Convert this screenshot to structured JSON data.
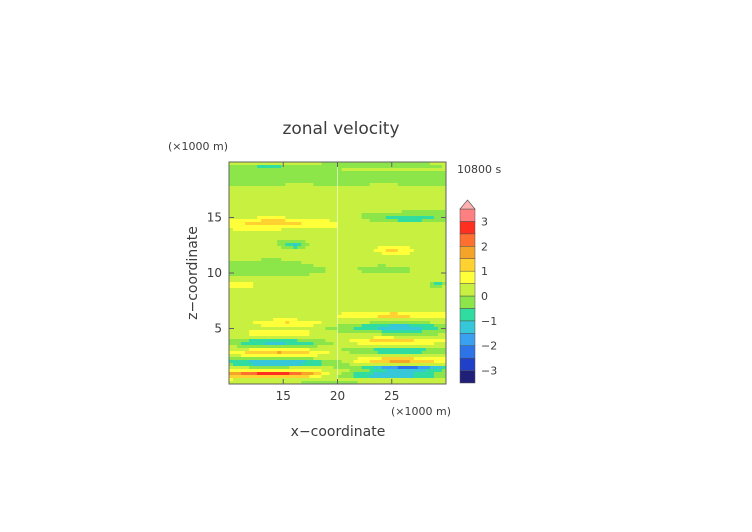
{
  "chart_data": {
    "type": "heatmap",
    "title": "zonal velocity",
    "time_label": "10800 s",
    "xlabel": "x−coordinate",
    "ylabel": "z−coordinate",
    "x_unit": "(×1000 m)",
    "z_unit": "(×1000 m)",
    "xlim": [
      10,
      30
    ],
    "zlim": [
      0,
      20
    ],
    "x_ticks": [
      15,
      20,
      25
    ],
    "z_ticks": [
      5,
      10,
      15
    ],
    "colorbar": {
      "levels": [
        -3.5,
        -3,
        -2.5,
        -2,
        -1.5,
        -1,
        -0.5,
        0,
        0.5,
        1,
        1.5,
        2,
        2.5,
        3,
        3.5
      ],
      "colors": [
        "#202078",
        "#2040c8",
        "#2c74e8",
        "#3aa0f0",
        "#36c8d8",
        "#30dca0",
        "#8ce64a",
        "#c8f040",
        "#ffff3a",
        "#ffd232",
        "#f5a42a",
        "#ff7030",
        "#ff3020",
        "#ff8080",
        "#ffb0b0"
      ],
      "tick_labels": [
        "3",
        "2",
        "1",
        "0",
        "−1",
        "−2",
        "−3"
      ],
      "tick_values": [
        3,
        2,
        1,
        0,
        -1,
        -2,
        -3
      ],
      "extend": "max"
    },
    "blobs": [
      {
        "x": 14,
        "z": 0.9,
        "rx": 4.5,
        "rz": 0.25,
        "v": 2.4
      },
      {
        "x": 14.5,
        "z": 1.9,
        "rx": 4.5,
        "rz": 0.3,
        "v": -1.8
      },
      {
        "x": 14.5,
        "z": 2.8,
        "rx": 4.5,
        "rz": 0.3,
        "v": 1.3
      },
      {
        "x": 14.5,
        "z": 3.7,
        "rx": 4.5,
        "rz": 0.35,
        "v": -1.4
      },
      {
        "x": 14.5,
        "z": 4.6,
        "rx": 4.2,
        "rz": 0.35,
        "v": 0.9
      },
      {
        "x": 15.5,
        "z": 5.4,
        "rx": 3.2,
        "rz": 0.3,
        "v": 0.9
      },
      {
        "x": 14,
        "z": 14.5,
        "rx": 3.5,
        "rz": 0.45,
        "v": 0.9
      },
      {
        "x": 16,
        "z": 12.5,
        "rx": 0.9,
        "rz": 0.25,
        "v": -1.2
      },
      {
        "x": 13,
        "z": 11.0,
        "rx": 3.5,
        "rz": 1.2,
        "v": -0.3
      },
      {
        "x": 10.8,
        "z": 8.9,
        "rx": 1.0,
        "rz": 0.3,
        "v": 0.7
      },
      {
        "x": 25,
        "z": 0.8,
        "rx": 5,
        "rz": 0.25,
        "v": -2.2
      },
      {
        "x": 26.3,
        "z": 1.4,
        "rx": 3.8,
        "rz": 0.25,
        "v": -2.7
      },
      {
        "x": 26,
        "z": 2.1,
        "rx": 4.5,
        "rz": 0.3,
        "v": 1.6
      },
      {
        "x": 25.5,
        "z": 3.0,
        "rx": 4.5,
        "rz": 0.3,
        "v": -1.2
      },
      {
        "x": 25,
        "z": 3.9,
        "rx": 4.5,
        "rz": 0.3,
        "v": 1.0
      },
      {
        "x": 25.5,
        "z": 5.1,
        "rx": 4.2,
        "rz": 0.4,
        "v": -1.4
      },
      {
        "x": 25.5,
        "z": 6.2,
        "rx": 3.8,
        "rz": 0.3,
        "v": 0.8
      },
      {
        "x": 25,
        "z": 12.1,
        "rx": 1.6,
        "rz": 0.35,
        "v": 0.9
      },
      {
        "x": 26.5,
        "z": 14.9,
        "rx": 3.5,
        "rz": 0.45,
        "v": -1.2
      },
      {
        "x": 29.2,
        "z": 9.0,
        "rx": 0.9,
        "rz": 0.3,
        "v": -1.1
      },
      {
        "x": 25,
        "z": 18.8,
        "rx": 4.5,
        "rz": 0.3,
        "v": -0.25
      },
      {
        "x": 14,
        "z": 19.5,
        "rx": 4,
        "rz": 0.3,
        "v": -0.8
      },
      {
        "x": 24,
        "z": 19.7,
        "rx": 5,
        "rz": 0.2,
        "v": -0.9
      },
      {
        "x": 19,
        "z": 0.15,
        "rx": 3,
        "rz": 0.12,
        "v": -0.7
      }
    ]
  }
}
